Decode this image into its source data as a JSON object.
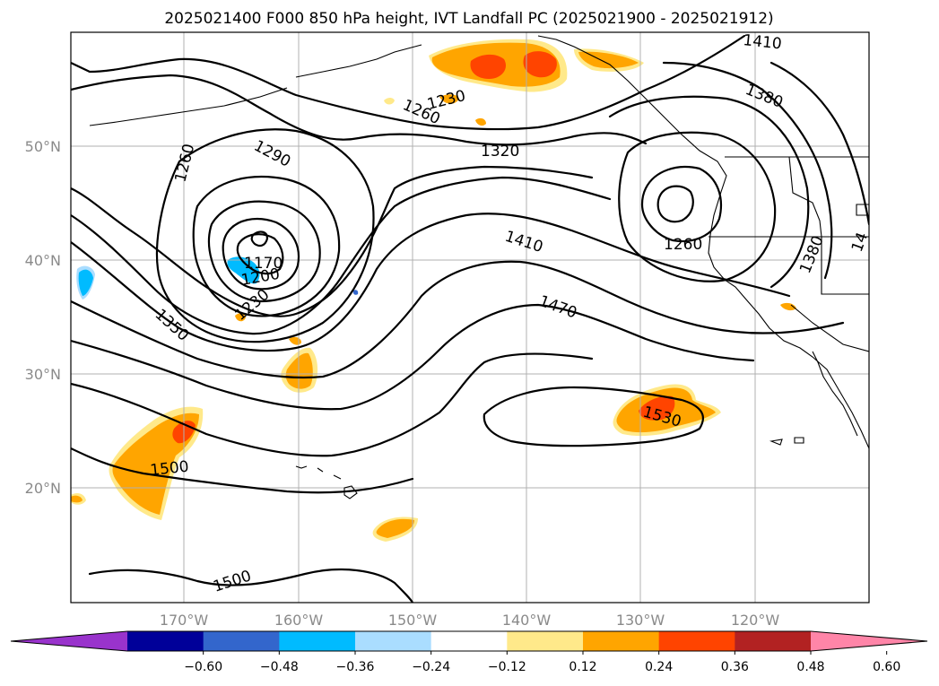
{
  "title": "2025021400 F000 850 hPa height, IVT Landfall PC (2025021900 - 2025021912)",
  "map": {
    "lat_labels": [
      "50°N",
      "40°N",
      "30°N",
      "20°N"
    ],
    "lon_labels": [
      "170°W",
      "160°W",
      "150°W",
      "140°W",
      "130°W",
      "120°W"
    ]
  },
  "contour_labels": [
    {
      "text": "1410",
      "id": "c1410a"
    },
    {
      "text": "1380",
      "id": "c1380a"
    },
    {
      "text": "1230",
      "id": "c1230a"
    },
    {
      "text": "1260",
      "id": "c1260a"
    },
    {
      "text": "1320",
      "id": "c1320"
    },
    {
      "text": "1290",
      "id": "c1290"
    },
    {
      "text": "1260",
      "id": "c1260b"
    },
    {
      "text": "1170",
      "id": "c1170"
    },
    {
      "text": "1200",
      "id": "c1200"
    },
    {
      "text": "1230",
      "id": "c1230b"
    },
    {
      "text": "1350",
      "id": "c1350"
    },
    {
      "text": "1410",
      "id": "c1410b"
    },
    {
      "text": "1260",
      "id": "c1260c"
    },
    {
      "text": "1380",
      "id": "c1380b"
    },
    {
      "text": "1470",
      "id": "c1470"
    },
    {
      "text": "1530",
      "id": "c1530"
    },
    {
      "text": "1500",
      "id": "c1500a"
    },
    {
      "text": "1500",
      "id": "c1500b"
    },
    {
      "text": "14",
      "id": "c14"
    }
  ],
  "colorbar": {
    "ticks": [
      "−0.60",
      "−0.48",
      "−0.36",
      "−0.24",
      "−0.12",
      "0.12",
      "0.24",
      "0.36",
      "0.48",
      "0.60"
    ],
    "colors": [
      "#9933cc",
      "#000099",
      "#3366cc",
      "#00bbff",
      "#aaddff",
      "#ffffff",
      "#ffe98a",
      "#ffa500",
      "#ff4400",
      "#b22222",
      "#ff85a8"
    ]
  }
}
